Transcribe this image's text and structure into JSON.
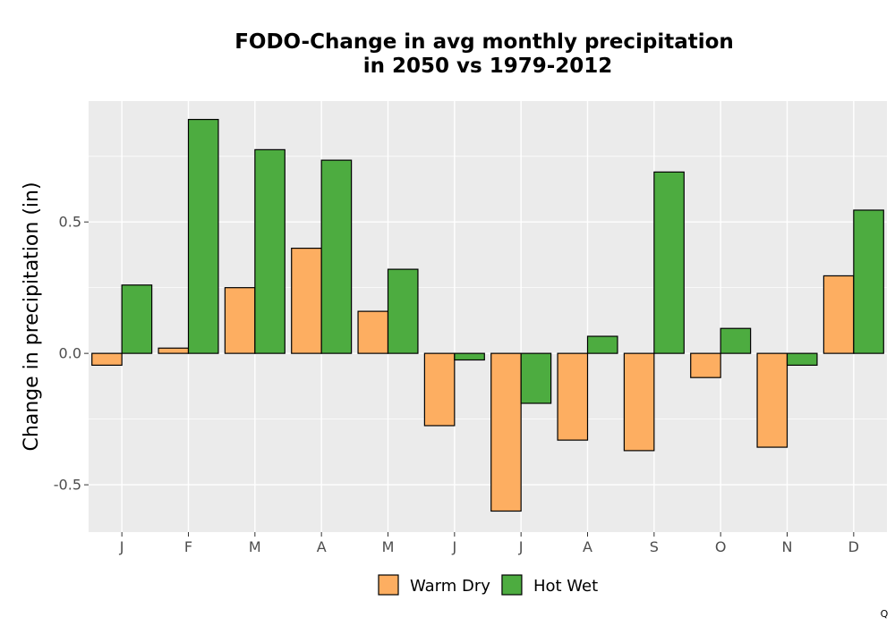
{
  "chart_data": {
    "type": "bar",
    "title_lines": [
      "FODO-Change in avg monthly precipitation",
      "in 2050 vs 1979-2012"
    ],
    "xlabel": "",
    "ylabel": "Change in precipitation (in)",
    "categories": [
      "J",
      "F",
      "M",
      "A",
      "M",
      "J",
      "J",
      "A",
      "S",
      "O",
      "N",
      "D"
    ],
    "series": [
      {
        "name": "Warm Dry",
        "color": "#fdae61",
        "values": [
          -0.045,
          0.02,
          0.25,
          0.4,
          0.16,
          -0.275,
          -0.6,
          -0.33,
          -0.37,
          -0.092,
          -0.357,
          0.295
        ]
      },
      {
        "name": "Hot Wet",
        "color": "#4dac40",
        "values": [
          0.26,
          0.89,
          0.775,
          0.735,
          0.32,
          -0.025,
          -0.19,
          0.065,
          0.69,
          0.095,
          -0.045,
          0.545
        ]
      }
    ],
    "ylim": [
      -0.68,
      0.96
    ],
    "yticks": [
      -0.5,
      0.0,
      0.5
    ],
    "ytick_labels": [
      "-0.5",
      "0.0",
      "0.5"
    ],
    "grid": true,
    "legend_position": "bottom"
  },
  "footer_mark": "Q"
}
